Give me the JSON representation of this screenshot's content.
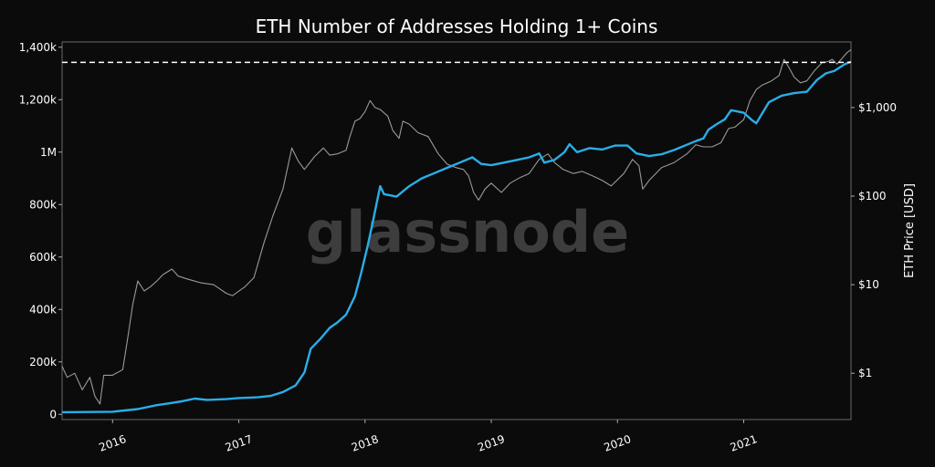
{
  "chart_data": {
    "type": "line",
    "title": "ETH Number of Addresses Holding 1+ Coins",
    "watermark": "glassnode",
    "x_ticks": [
      "2016",
      "2017",
      "2018",
      "2019",
      "2020",
      "2021"
    ],
    "x_range": [
      2015.6,
      2021.85
    ],
    "y_left": {
      "ticks": [
        0,
        200000,
        400000,
        600000,
        800000,
        1000000,
        1200000,
        1400000
      ],
      "tick_labels": [
        "0",
        "200k",
        "400k",
        "600k",
        "800k",
        "1M",
        "1,200k",
        "1,400k"
      ],
      "range": [
        -20000,
        1420000
      ]
    },
    "y_right": {
      "label": "ETH Price [USD]",
      "scale": "log",
      "ticks": [
        1,
        10,
        100,
        1000
      ],
      "tick_labels": [
        "$1",
        "$10",
        "$100",
        "$1,000"
      ],
      "range": [
        0.3,
        5500
      ]
    },
    "ath_line": {
      "y": 1342000,
      "style": "dashed",
      "color": "#ffffff"
    },
    "series": [
      {
        "axis": "left",
        "color": "#29aee8",
        "points": [
          [
            2015.6,
            8000
          ],
          [
            2016.0,
            10000
          ],
          [
            2016.2,
            20000
          ],
          [
            2016.35,
            35000
          ],
          [
            2016.45,
            42000
          ],
          [
            2016.55,
            50000
          ],
          [
            2016.65,
            60000
          ],
          [
            2016.75,
            55000
          ],
          [
            2016.9,
            58000
          ],
          [
            2017.0,
            62000
          ],
          [
            2017.15,
            65000
          ],
          [
            2017.25,
            70000
          ],
          [
            2017.35,
            85000
          ],
          [
            2017.45,
            110000
          ],
          [
            2017.52,
            160000
          ],
          [
            2017.57,
            250000
          ],
          [
            2017.65,
            290000
          ],
          [
            2017.72,
            330000
          ],
          [
            2017.78,
            350000
          ],
          [
            2017.85,
            380000
          ],
          [
            2017.92,
            450000
          ],
          [
            2017.97,
            540000
          ],
          [
            2018.02,
            640000
          ],
          [
            2018.06,
            730000
          ],
          [
            2018.09,
            800000
          ],
          [
            2018.12,
            870000
          ],
          [
            2018.15,
            840000
          ],
          [
            2018.25,
            830000
          ],
          [
            2018.35,
            870000
          ],
          [
            2018.45,
            900000
          ],
          [
            2018.55,
            920000
          ],
          [
            2018.65,
            940000
          ],
          [
            2018.75,
            960000
          ],
          [
            2018.85,
            980000
          ],
          [
            2018.92,
            955000
          ],
          [
            2019.0,
            950000
          ],
          [
            2019.1,
            960000
          ],
          [
            2019.2,
            970000
          ],
          [
            2019.3,
            980000
          ],
          [
            2019.38,
            995000
          ],
          [
            2019.42,
            960000
          ],
          [
            2019.5,
            970000
          ],
          [
            2019.58,
            1000000
          ],
          [
            2019.62,
            1030000
          ],
          [
            2019.68,
            1000000
          ],
          [
            2019.78,
            1015000
          ],
          [
            2019.88,
            1010000
          ],
          [
            2019.98,
            1025000
          ],
          [
            2020.08,
            1025000
          ],
          [
            2020.15,
            995000
          ],
          [
            2020.25,
            985000
          ],
          [
            2020.35,
            992000
          ],
          [
            2020.45,
            1008000
          ],
          [
            2020.55,
            1028000
          ],
          [
            2020.62,
            1042000
          ],
          [
            2020.68,
            1052000
          ],
          [
            2020.72,
            1085000
          ],
          [
            2020.78,
            1105000
          ],
          [
            2020.85,
            1125000
          ],
          [
            2020.9,
            1160000
          ],
          [
            2020.95,
            1155000
          ],
          [
            2021.0,
            1150000
          ],
          [
            2021.07,
            1120000
          ],
          [
            2021.1,
            1110000
          ],
          [
            2021.2,
            1190000
          ],
          [
            2021.3,
            1215000
          ],
          [
            2021.4,
            1225000
          ],
          [
            2021.5,
            1230000
          ],
          [
            2021.58,
            1275000
          ],
          [
            2021.65,
            1300000
          ],
          [
            2021.72,
            1310000
          ],
          [
            2021.8,
            1335000
          ],
          [
            2021.85,
            1345000
          ]
        ]
      },
      {
        "axis": "right",
        "color": "#9a9a9a",
        "points": [
          [
            2015.6,
            1.2
          ],
          [
            2015.64,
            0.9
          ],
          [
            2015.7,
            1.0
          ],
          [
            2015.76,
            0.65
          ],
          [
            2015.82,
            0.9
          ],
          [
            2015.86,
            0.55
          ],
          [
            2015.9,
            0.45
          ],
          [
            2015.93,
            0.95
          ],
          [
            2016.0,
            0.95
          ],
          [
            2016.08,
            1.1
          ],
          [
            2016.12,
            2.5
          ],
          [
            2016.16,
            6.0
          ],
          [
            2016.2,
            11.0
          ],
          [
            2016.25,
            8.5
          ],
          [
            2016.3,
            9.5
          ],
          [
            2016.35,
            11.0
          ],
          [
            2016.4,
            13.0
          ],
          [
            2016.47,
            15.0
          ],
          [
            2016.52,
            12.5
          ],
          [
            2016.6,
            11.5
          ],
          [
            2016.7,
            10.5
          ],
          [
            2016.8,
            10.0
          ],
          [
            2016.9,
            8.0
          ],
          [
            2016.95,
            7.5
          ],
          [
            2017.05,
            9.5
          ],
          [
            2017.12,
            12.0
          ],
          [
            2017.2,
            30.0
          ],
          [
            2017.27,
            60.0
          ],
          [
            2017.35,
            120.0
          ],
          [
            2017.42,
            350.0
          ],
          [
            2017.47,
            250.0
          ],
          [
            2017.52,
            200.0
          ],
          [
            2017.6,
            280.0
          ],
          [
            2017.67,
            350.0
          ],
          [
            2017.72,
            290.0
          ],
          [
            2017.78,
            300.0
          ],
          [
            2017.85,
            330.0
          ],
          [
            2017.88,
            470.0
          ],
          [
            2017.92,
            700.0
          ],
          [
            2017.96,
            750.0
          ],
          [
            2018.0,
            900.0
          ],
          [
            2018.04,
            1200.0
          ],
          [
            2018.08,
            1000.0
          ],
          [
            2018.12,
            950.0
          ],
          [
            2018.18,
            800.0
          ],
          [
            2018.22,
            550.0
          ],
          [
            2018.27,
            450.0
          ],
          [
            2018.3,
            700.0
          ],
          [
            2018.35,
            650.0
          ],
          [
            2018.42,
            520.0
          ],
          [
            2018.5,
            470.0
          ],
          [
            2018.58,
            300.0
          ],
          [
            2018.65,
            230.0
          ],
          [
            2018.72,
            210.0
          ],
          [
            2018.78,
            200.0
          ],
          [
            2018.82,
            170.0
          ],
          [
            2018.86,
            110.0
          ],
          [
            2018.9,
            90.0
          ],
          [
            2018.95,
            120.0
          ],
          [
            2019.0,
            140.0
          ],
          [
            2019.08,
            110.0
          ],
          [
            2019.15,
            140.0
          ],
          [
            2019.22,
            160.0
          ],
          [
            2019.3,
            180.0
          ],
          [
            2019.38,
            260.0
          ],
          [
            2019.45,
            300.0
          ],
          [
            2019.5,
            240.0
          ],
          [
            2019.57,
            200.0
          ],
          [
            2019.65,
            180.0
          ],
          [
            2019.72,
            190.0
          ],
          [
            2019.8,
            170.0
          ],
          [
            2019.88,
            150.0
          ],
          [
            2019.95,
            130.0
          ],
          [
            2020.05,
            180.0
          ],
          [
            2020.12,
            260.0
          ],
          [
            2020.17,
            220.0
          ],
          [
            2020.2,
            120.0
          ],
          [
            2020.25,
            150.0
          ],
          [
            2020.35,
            210.0
          ],
          [
            2020.45,
            240.0
          ],
          [
            2020.55,
            300.0
          ],
          [
            2020.62,
            380.0
          ],
          [
            2020.68,
            360.0
          ],
          [
            2020.75,
            360.0
          ],
          [
            2020.82,
            400.0
          ],
          [
            2020.88,
            580.0
          ],
          [
            2020.93,
            600.0
          ],
          [
            2021.0,
            730.0
          ],
          [
            2021.05,
            1200.0
          ],
          [
            2021.1,
            1600.0
          ],
          [
            2021.15,
            1800.0
          ],
          [
            2021.22,
            2000.0
          ],
          [
            2021.28,
            2300.0
          ],
          [
            2021.32,
            3500.0
          ],
          [
            2021.36,
            2800.0
          ],
          [
            2021.4,
            2200.0
          ],
          [
            2021.45,
            1900.0
          ],
          [
            2021.5,
            2000.0
          ],
          [
            2021.56,
            2600.0
          ],
          [
            2021.62,
            3200.0
          ],
          [
            2021.67,
            3300.0
          ],
          [
            2021.7,
            3500.0
          ],
          [
            2021.74,
            3100.0
          ],
          [
            2021.78,
            3600.0
          ],
          [
            2021.82,
            4200.0
          ],
          [
            2021.85,
            4500.0
          ]
        ]
      }
    ],
    "legend": "none",
    "grid": false
  }
}
